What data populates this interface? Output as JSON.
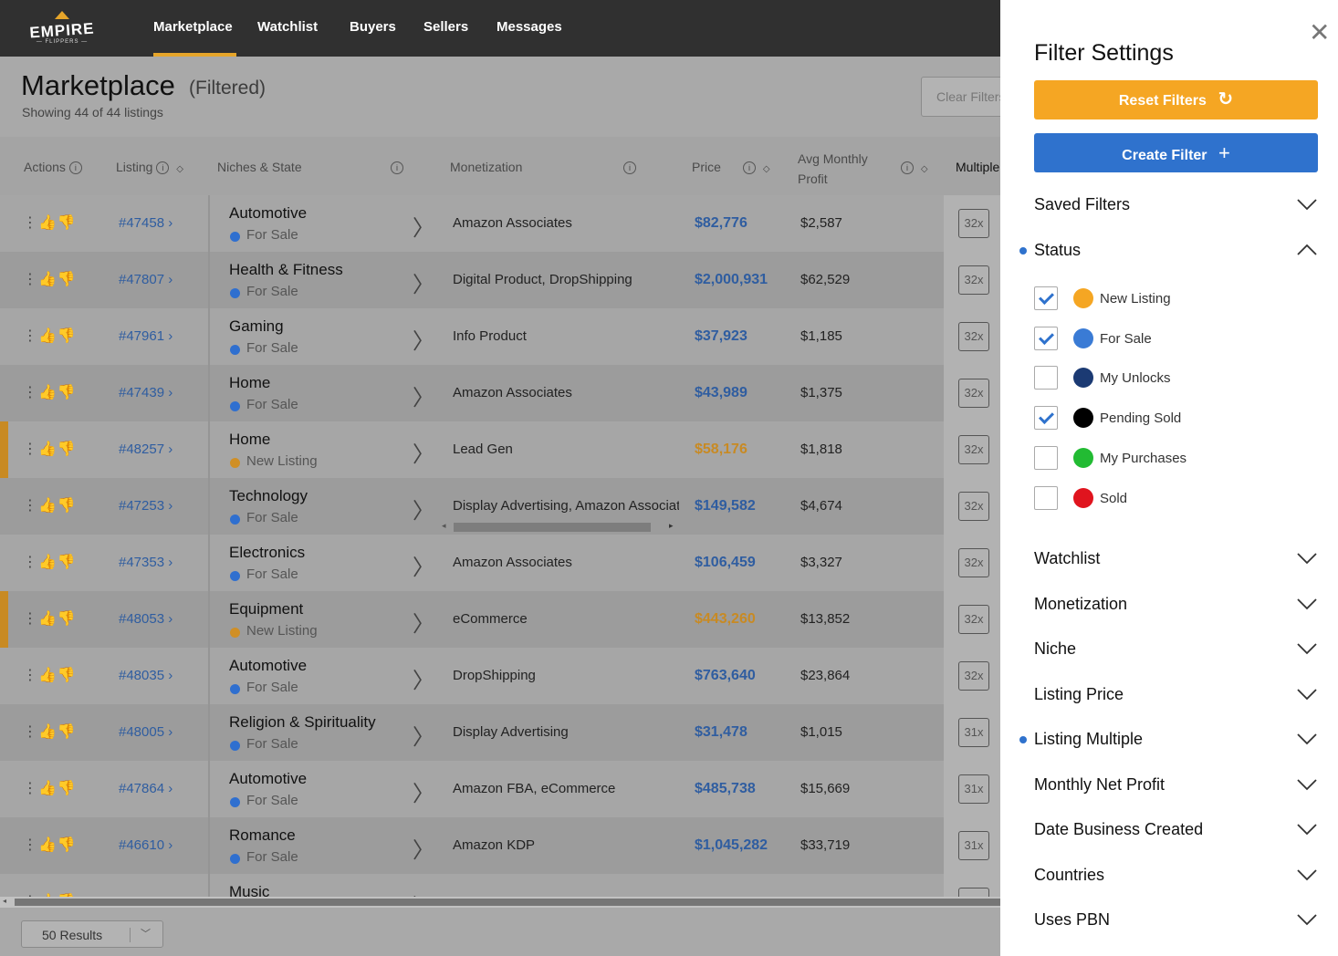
{
  "nav": {
    "logo_word": "EMPIRE",
    "logo_sub": "— FLIPPERS —",
    "links": [
      "Marketplace",
      "Watchlist",
      "Buyers",
      "Sellers",
      "Messages"
    ]
  },
  "header": {
    "title": "Marketplace",
    "filtered": "(Filtered)",
    "count": "Showing 44 of 44 listings",
    "clear_button": "Clear Filters"
  },
  "table": {
    "columns": {
      "actions": "Actions",
      "listing": "Listing",
      "niches": "Niches & State",
      "monetization": "Monetization",
      "price": "Price",
      "avg_profit_1": "Avg Monthly",
      "avg_profit_2": "Profit",
      "multiple": "Multiple"
    },
    "rows": [
      {
        "id": "#47458",
        "niche": "Automotive",
        "state": "For Sale",
        "monetization": "Amazon Associates",
        "price": "$82,776",
        "profit": "$2,587",
        "multiple": "32x"
      },
      {
        "id": "#47807",
        "niche": "Health & Fitness",
        "state": "For Sale",
        "monetization": "Digital Product, DropShipping",
        "price": "$2,000,931",
        "profit": "$62,529",
        "multiple": "32x"
      },
      {
        "id": "#47961",
        "niche": "Gaming",
        "state": "For Sale",
        "monetization": "Info Product",
        "price": "$37,923",
        "profit": "$1,185",
        "multiple": "32x"
      },
      {
        "id": "#47439",
        "niche": "Home",
        "state": "For Sale",
        "monetization": "Amazon Associates",
        "price": "$43,989",
        "profit": "$1,375",
        "multiple": "32x"
      },
      {
        "id": "#48257",
        "niche": "Home",
        "state": "New Listing",
        "monetization": "Lead Gen",
        "price": "$58,176",
        "profit": "$1,818",
        "multiple": "32x"
      },
      {
        "id": "#47253",
        "niche": "Technology",
        "state": "For Sale",
        "monetization": "Display Advertising, Amazon Associates",
        "price": "$149,582",
        "profit": "$4,674",
        "multiple": "32x"
      },
      {
        "id": "#47353",
        "niche": "Electronics",
        "state": "For Sale",
        "monetization": "Amazon Associates",
        "price": "$106,459",
        "profit": "$3,327",
        "multiple": "32x"
      },
      {
        "id": "#48053",
        "niche": "Equipment",
        "state": "New Listing",
        "monetization": "eCommerce",
        "price": "$443,260",
        "profit": "$13,852",
        "multiple": "32x"
      },
      {
        "id": "#48035",
        "niche": "Automotive",
        "state": "For Sale",
        "monetization": "DropShipping",
        "price": "$763,640",
        "profit": "$23,864",
        "multiple": "32x"
      },
      {
        "id": "#48005",
        "niche": "Religion & Spirituality",
        "state": "For Sale",
        "monetization": "Display Advertising",
        "price": "$31,478",
        "profit": "$1,015",
        "multiple": "31x"
      },
      {
        "id": "#47864",
        "niche": "Automotive",
        "state": "For Sale",
        "monetization": "Amazon FBA, eCommerce",
        "price": "$485,738",
        "profit": "$15,669",
        "multiple": "31x"
      },
      {
        "id": "#46610",
        "niche": "Romance",
        "state": "For Sale",
        "monetization": "Amazon KDP",
        "price": "$1,045,282",
        "profit": "$33,719",
        "multiple": "31x"
      },
      {
        "id": "",
        "niche": "Music",
        "state": "",
        "monetization": "",
        "price": "",
        "profit": "",
        "multiple": ""
      }
    ]
  },
  "footer": {
    "results": "50 Results"
  },
  "panel": {
    "title": "Filter Settings",
    "reset_button": "Reset Filters",
    "create_button": "Create Filter",
    "saved_filters": "Saved Filters",
    "status": "Status",
    "status_options": [
      {
        "label": "New Listing",
        "checked": true,
        "color": "#f5a623"
      },
      {
        "label": "For Sale",
        "checked": true,
        "color": "#3a7bd5"
      },
      {
        "label": "My Unlocks",
        "checked": false,
        "color": "#1b3a73"
      },
      {
        "label": "Pending Sold",
        "checked": true,
        "color": "#000000"
      },
      {
        "label": "My Purchases",
        "checked": false,
        "color": "#22bb33"
      },
      {
        "label": "Sold",
        "checked": false,
        "color": "#e0141e"
      }
    ],
    "sections": [
      "Watchlist",
      "Monetization",
      "Niche",
      "Listing Price",
      "Listing Multiple",
      "Monthly Net Profit",
      "Date Business Created",
      "Countries",
      "Uses PBN"
    ]
  },
  "colors": {
    "accent_orange": "#f5a623",
    "accent_blue": "#2f72cd",
    "price_blue": "#2f5da0",
    "price_orange": "#c88a23"
  }
}
